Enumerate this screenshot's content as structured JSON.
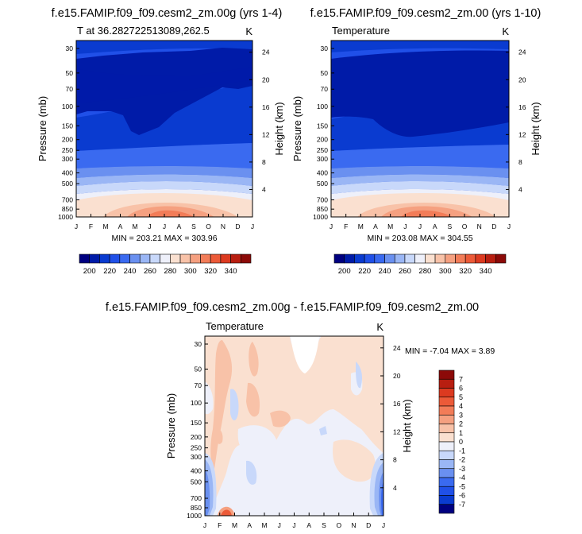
{
  "chart_data": [
    {
      "type": "heatmap",
      "title": "f.e15.FAMIP.f09_f09.cesm2_zm.00g (yrs 1-4)",
      "left_label": "T at 36.282722513089,262.5",
      "units": "K",
      "ylabel": "Pressure (mb)",
      "ylabel_right": "Height (km)",
      "x_ticks": [
        "J",
        "F",
        "M",
        "A",
        "M",
        "J",
        "J",
        "A",
        "S",
        "O",
        "N",
        "D",
        "J"
      ],
      "y_ticks": [
        "30",
        "50",
        "70",
        "100",
        "150",
        "200",
        "250",
        "300",
        "400",
        "500",
        "700",
        "850",
        "1000"
      ],
      "y_right_ticks": [
        "24",
        "20",
        "16",
        "12",
        "8",
        "4"
      ],
      "stats_text": "MIN = 203.21 MAX = 303.96",
      "min": 203.21,
      "max": 303.96
    },
    {
      "type": "heatmap",
      "title": "f.e15.FAMIP.f09_f09.cesm2_zm.00 (yrs 1-10)",
      "left_label": "Temperature",
      "units": "K",
      "ylabel": "Pressure (mb)",
      "ylabel_right": "Height (km)",
      "x_ticks": [
        "J",
        "F",
        "M",
        "A",
        "M",
        "J",
        "J",
        "A",
        "S",
        "O",
        "N",
        "D",
        "J"
      ],
      "y_ticks": [
        "30",
        "50",
        "70",
        "100",
        "150",
        "200",
        "250",
        "300",
        "400",
        "500",
        "700",
        "850",
        "1000"
      ],
      "y_right_ticks": [
        "24",
        "20",
        "16",
        "12",
        "8",
        "4"
      ],
      "stats_text": "MIN = 203.08 MAX = 304.55",
      "min": 203.08,
      "max": 304.55
    },
    {
      "type": "heatmap",
      "title": "f.e15.FAMIP.f09_f09.cesm2_zm.00g - f.e15.FAMIP.f09_f09.cesm2_zm.00",
      "left_label": "Temperature",
      "units": "K",
      "ylabel": "Pressure (mb)",
      "ylabel_right": "Height (km)",
      "x_ticks": [
        "J",
        "F",
        "M",
        "A",
        "M",
        "J",
        "J",
        "A",
        "S",
        "O",
        "N",
        "D",
        "J"
      ],
      "y_ticks": [
        "30",
        "50",
        "70",
        "100",
        "150",
        "200",
        "250",
        "300",
        "400",
        "500",
        "700",
        "850",
        "1000"
      ],
      "y_right_ticks": [
        "24",
        "20",
        "16",
        "12",
        "8",
        "4"
      ],
      "stats_text": "MIN =  -7.04 MAX =   3.89",
      "min": -7.04,
      "max": 3.89
    }
  ],
  "colorbars": {
    "temperature": {
      "labels": [
        "200",
        "220",
        "240",
        "260",
        "280",
        "300",
        "320",
        "340"
      ],
      "colors": [
        "#000080",
        "#001ba8",
        "#0a3bd0",
        "#2050e8",
        "#3a6af0",
        "#6a90f0",
        "#9ab6f5",
        "#c8d8fa",
        "#eef0fa",
        "#fae0d0",
        "#f8c2a8",
        "#f5a080",
        "#f27c58",
        "#ec5a38",
        "#dc3a20",
        "#b81e10",
        "#8c0a08"
      ]
    },
    "difference": {
      "labels": [
        "7",
        "6",
        "5",
        "4",
        "3",
        "2",
        "1",
        "0",
        "-1",
        "-2",
        "-3",
        "-4",
        "-5",
        "-6",
        "-7"
      ],
      "colors": [
        "#8c0a08",
        "#b81e10",
        "#dc3a20",
        "#ec5a38",
        "#f27c58",
        "#f5a080",
        "#f8c2a8",
        "#fae0d0",
        "#eef0fa",
        "#c8d8fa",
        "#9ab6f5",
        "#6a90f0",
        "#3a6af0",
        "#2050e8",
        "#0a3bd0",
        "#000080"
      ]
    }
  }
}
